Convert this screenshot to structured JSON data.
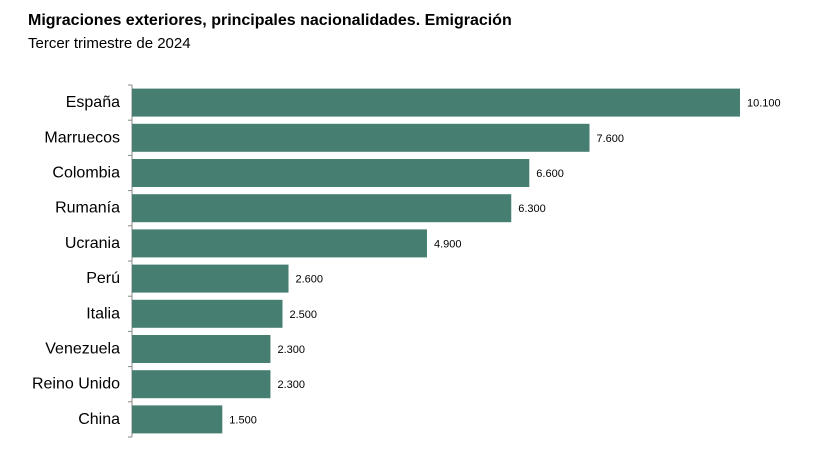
{
  "chart_data": {
    "type": "bar",
    "orientation": "horizontal",
    "title": "Migraciones exteriores, principales nacionalidades. Emigración",
    "subtitle": "Tercer trimestre de 2024",
    "categories": [
      "España",
      "Marruecos",
      "Colombia",
      "Rumanía",
      "Ucrania",
      "Perú",
      "Italia",
      "Venezuela",
      "Reino Unido",
      "China"
    ],
    "values": [
      10100,
      7600,
      6600,
      6300,
      4900,
      2600,
      2500,
      2300,
      2300,
      1500
    ],
    "value_labels": [
      "10.100",
      "7.600",
      "6.600",
      "6.300",
      "4.900",
      "2.600",
      "2.500",
      "2.300",
      "2.300",
      "1.500"
    ],
    "xlim": [
      0,
      10100
    ],
    "grid": false,
    "legend": "none",
    "colors": {
      "bar": "#467e72",
      "axis": "#888888"
    }
  }
}
